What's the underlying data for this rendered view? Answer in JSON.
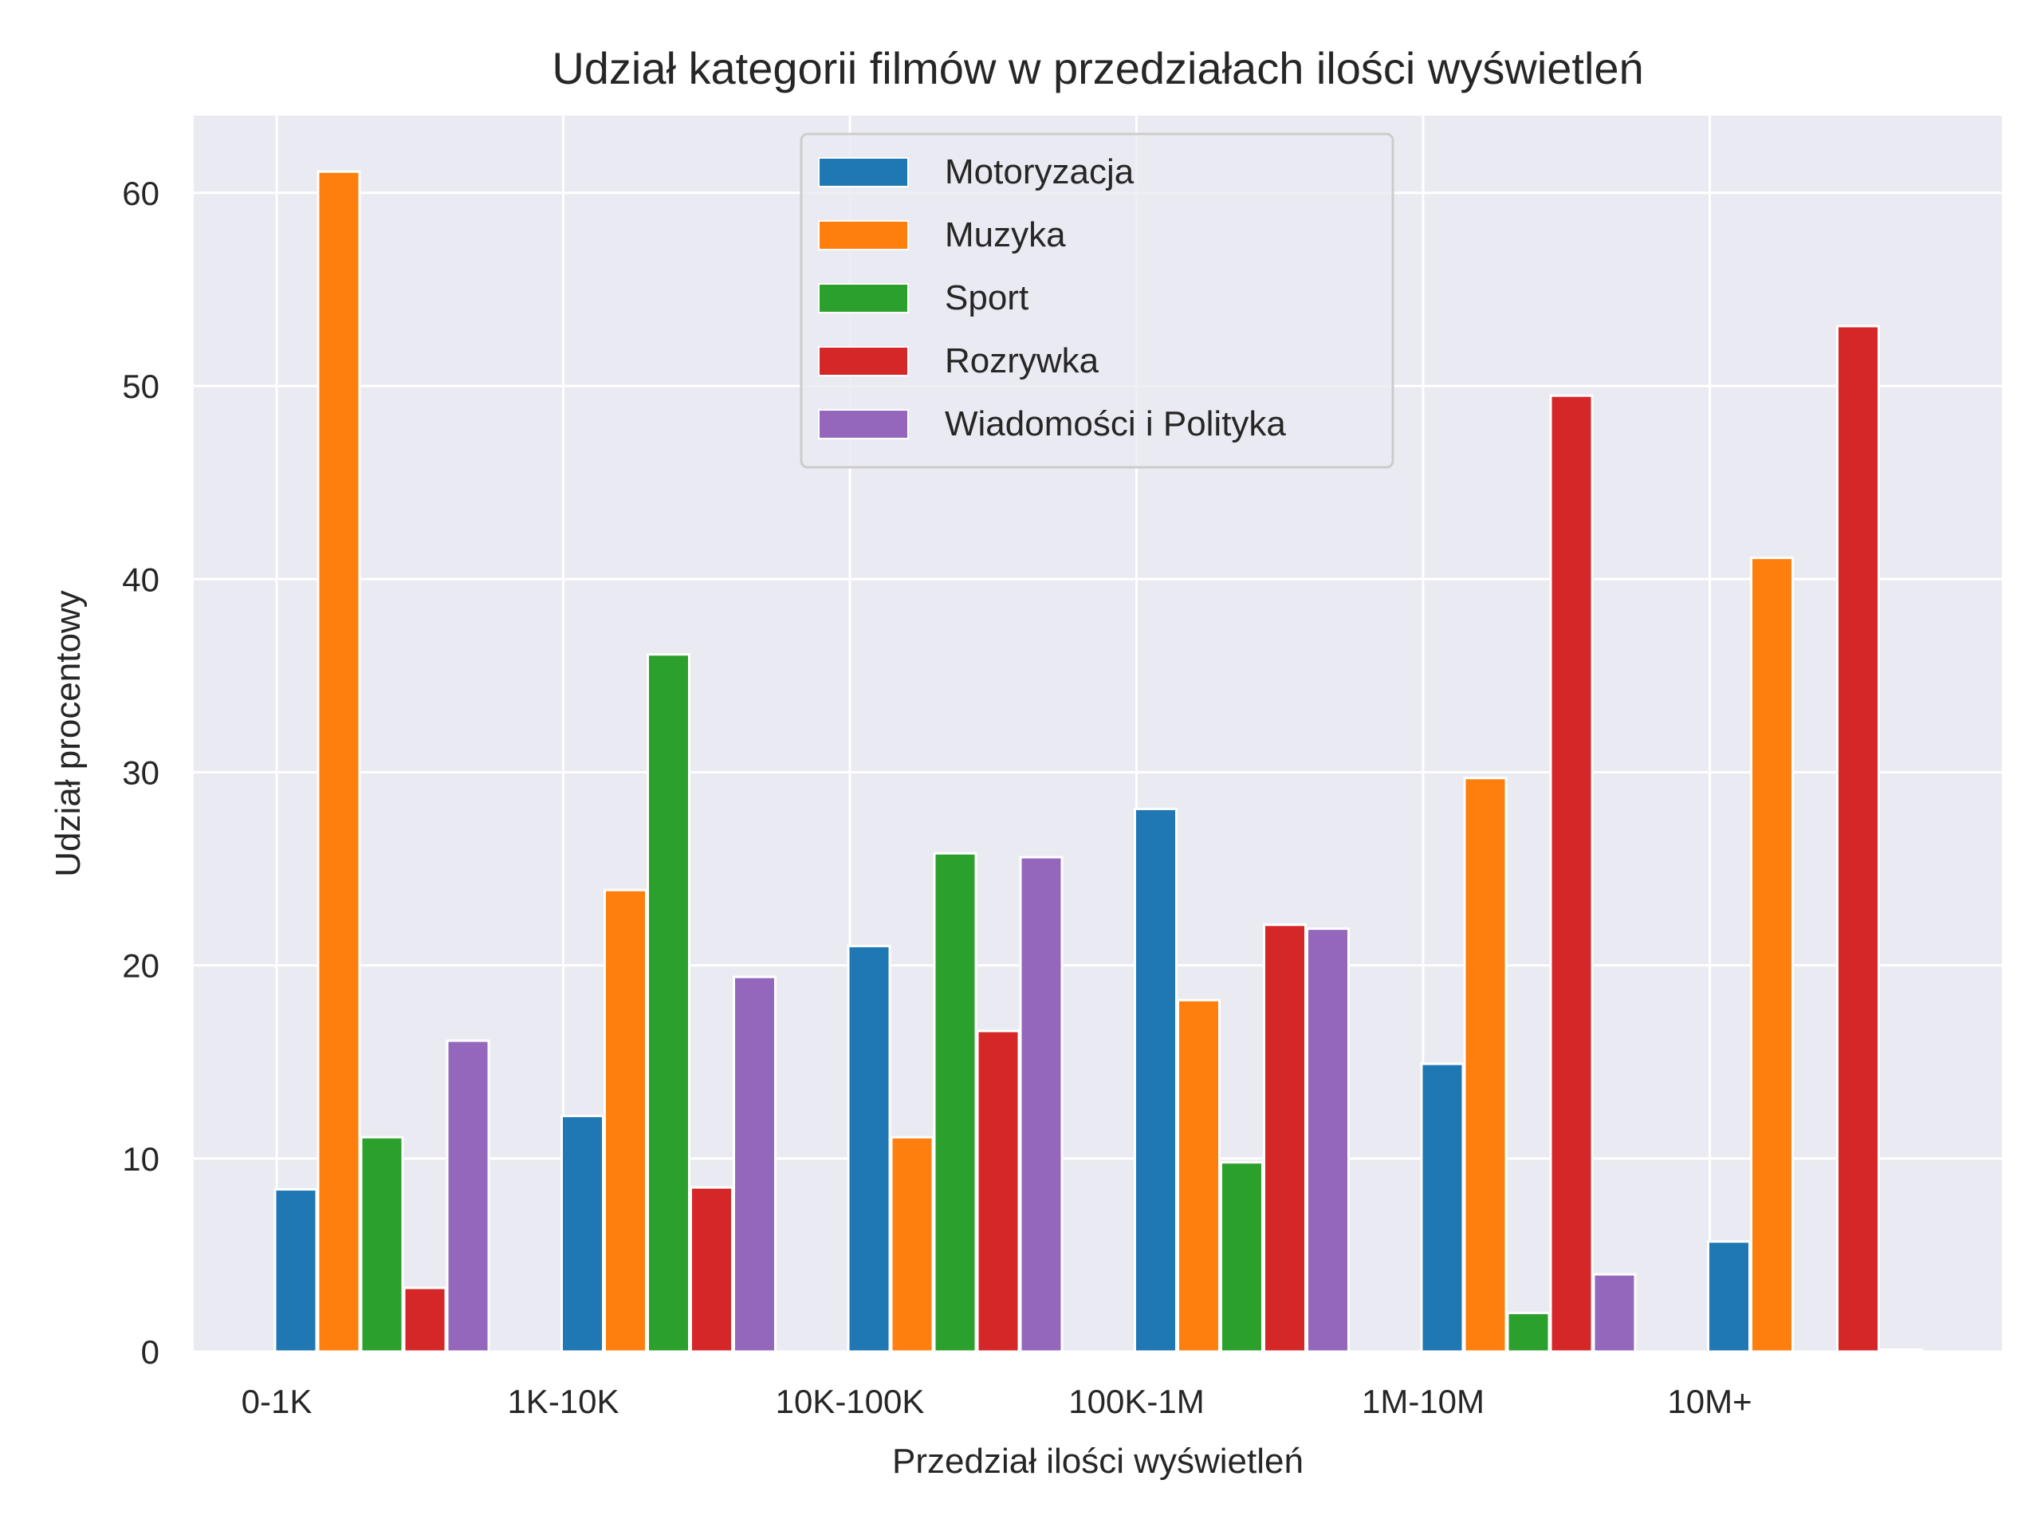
{
  "chart_data": {
    "type": "bar",
    "title": "Udział kategorii filmów w przedziałach ilości wyświetleń",
    "xlabel": "Przedział ilości wyświetleń",
    "ylabel": "Udział procentowy",
    "categories": [
      "0-1K",
      "1K-10K",
      "10K-100K",
      "100K-1M",
      "1M-10M",
      "10M+"
    ],
    "ylim": [
      0,
      64
    ],
    "yticks": [
      0,
      10,
      20,
      30,
      40,
      50,
      60
    ],
    "grid": true,
    "legend_position": "top-center",
    "series": [
      {
        "name": "Motoryzacja",
        "color": "#1f77b4",
        "values": [
          8.4,
          12.2,
          21.0,
          28.1,
          14.9,
          5.7
        ]
      },
      {
        "name": "Muzyka",
        "color": "#ff7f0e",
        "values": [
          61.1,
          23.9,
          11.1,
          18.2,
          29.7,
          41.1
        ]
      },
      {
        "name": "Sport",
        "color": "#2ca02c",
        "values": [
          11.1,
          36.1,
          25.8,
          9.8,
          2.0,
          0.0
        ]
      },
      {
        "name": "Rozrywka",
        "color": "#d62728",
        "values": [
          3.3,
          8.5,
          16.6,
          22.1,
          49.5,
          53.1
        ]
      },
      {
        "name": "Wiadomości i Polityka",
        "color": "#9467bd",
        "values": [
          16.1,
          19.4,
          25.6,
          21.9,
          4.0,
          0.1
        ]
      }
    ],
    "plot_background": "#eaeaf2",
    "grid_color": "#ffffff"
  }
}
